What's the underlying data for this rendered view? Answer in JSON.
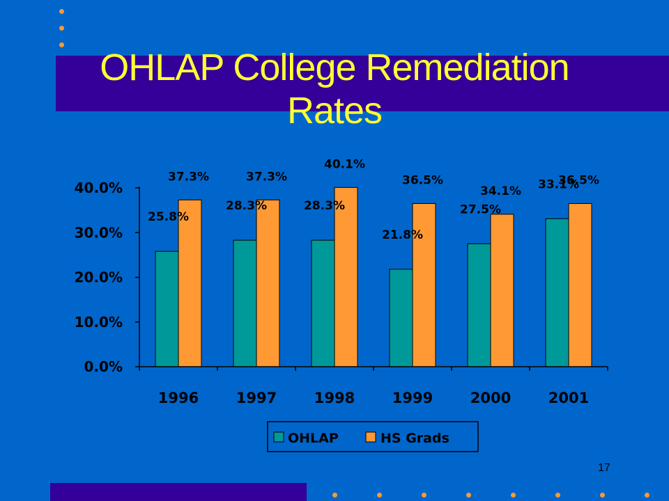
{
  "slide": {
    "title": "OHLAP College Remediation Rates",
    "number": "17"
  },
  "colors": {
    "background": "#0066cc",
    "band": "#330099",
    "title": "#ffff33",
    "accent_dot": "#ff9933",
    "ohlap": "#009999",
    "hs_grads": "#ff9933"
  },
  "chart_data": {
    "type": "bar",
    "categories": [
      "1996",
      "1997",
      "1998",
      "1999",
      "2000",
      "2001"
    ],
    "series": [
      {
        "name": "OHLAP",
        "values": [
          25.8,
          28.3,
          28.3,
          21.8,
          27.5,
          33.1
        ],
        "labels": [
          "25.8%",
          "28.3%",
          "28.3%",
          "21.8%",
          "27.5%",
          "33.1%"
        ]
      },
      {
        "name": "HS Grads",
        "values": [
          37.3,
          37.3,
          40.1,
          36.5,
          34.1,
          36.5
        ],
        "labels": [
          "37.3%",
          "37.3%",
          "40.1%",
          "36.5%",
          "34.1%",
          "36.5%"
        ]
      }
    ],
    "ylim": [
      0,
      40
    ],
    "yticks": [
      0,
      10,
      20,
      30,
      40
    ],
    "ytick_labels": [
      "0.0%",
      "10.0%",
      "20.0%",
      "30.0%",
      "40.0%"
    ],
    "grid": false,
    "legend": "bottom"
  }
}
